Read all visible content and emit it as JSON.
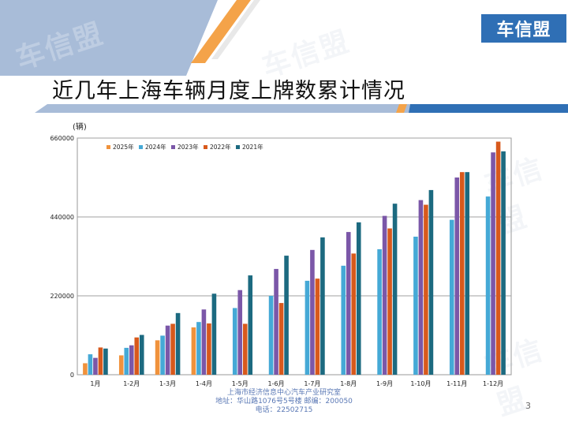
{
  "logo_text": "车信盟",
  "watermark_text": "车信盟",
  "title": "近几年上海车辆月度上牌数累计情况",
  "unit_label": "(辆)",
  "footer": {
    "line1": "上海市经济信息中心汽车产业研究室",
    "line2": "地址：华山路1076号5号楼    邮编：200050",
    "line3": "电话：22502715"
  },
  "page_number": "3",
  "colors": {
    "header_blue": "#a8bcd8",
    "accent_orange": "#f4a349",
    "rule_blue": "#2f6fb5"
  },
  "chart_data": {
    "type": "bar",
    "categories": [
      "1月",
      "1-2月",
      "1-3月",
      "1-4月",
      "1-5月",
      "1-6月",
      "1-7月",
      "1-8月",
      "1-9月",
      "1-10月",
      "1-11月",
      "1-12月"
    ],
    "series": [
      {
        "name": "2025年",
        "color": "#f0923c",
        "values": [
          32000,
          54000,
          96000,
          132000,
          null,
          null,
          null,
          null,
          null,
          null,
          null,
          null
        ]
      },
      {
        "name": "2024年",
        "color": "#45a9d6",
        "values": [
          57000,
          75000,
          109000,
          147000,
          186000,
          220000,
          262000,
          304000,
          350000,
          385000,
          432000,
          497000
        ]
      },
      {
        "name": "2023年",
        "color": "#7b57a8",
        "values": [
          47000,
          82000,
          137000,
          182000,
          236000,
          295000,
          348000,
          398000,
          443000,
          487000,
          550000,
          620000
        ]
      },
      {
        "name": "2022年",
        "color": "#d8591c",
        "values": [
          76000,
          104000,
          142000,
          143000,
          142000,
          200000,
          268000,
          338000,
          408000,
          474000,
          565000,
          650000
        ]
      },
      {
        "name": "2021年",
        "color": "#1c6a80",
        "values": [
          73000,
          111000,
          172000,
          226000,
          277000,
          332000,
          383000,
          425000,
          477000,
          515000,
          565000,
          623000
        ]
      }
    ],
    "yticks": [
      0,
      220000,
      440000,
      660000
    ],
    "ylim": [
      0,
      660000
    ],
    "legend_position": "top-left",
    "grid": true
  }
}
